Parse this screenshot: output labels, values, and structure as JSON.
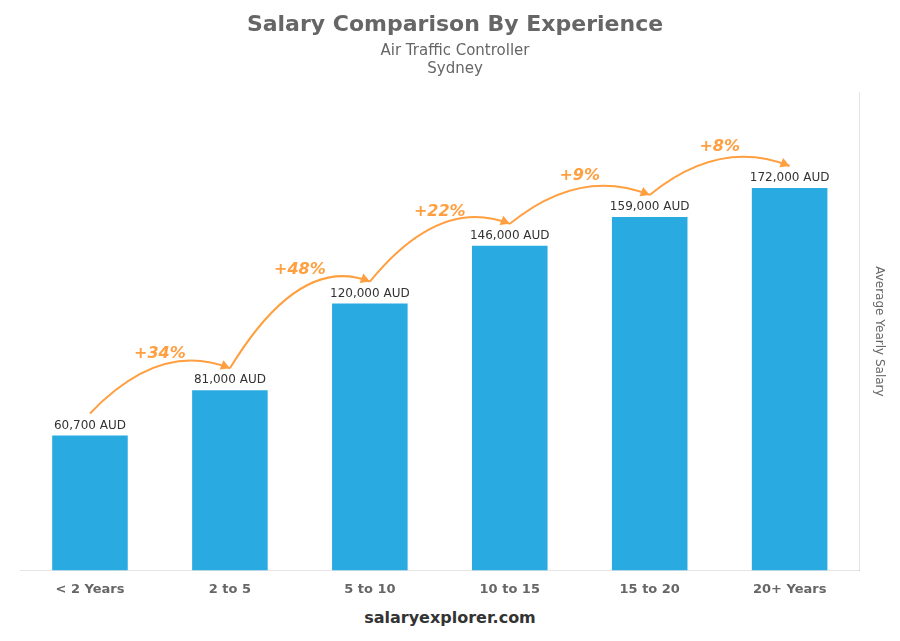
{
  "chart_data": {
    "type": "bar",
    "title": "Salary Comparison By Experience",
    "subtitle": [
      "Air Traffic Controller",
      "Sydney"
    ],
    "categories": [
      "< 2 Years",
      "2 to 5",
      "5 to 10",
      "10 to 15",
      "15 to 20",
      "20+ Years"
    ],
    "values": [
      60700,
      81000,
      120000,
      146000,
      159000,
      172000
    ],
    "value_labels": [
      "60,700 AUD",
      "81,000 AUD",
      "120,000 AUD",
      "146,000 AUD",
      "159,000 AUD",
      "172,000 AUD"
    ],
    "data_labels": true,
    "color": "#29ABE2",
    "annotations": [
      "+34%",
      "+48%",
      "+22%",
      "+9%",
      "+8%"
    ],
    "y_label": "Average Yearly Salary",
    "footer": "salaryexplorer.com",
    "ylim": [
      0,
      215000
    ],
    "tick_labels": "x",
    "grid": false
  }
}
